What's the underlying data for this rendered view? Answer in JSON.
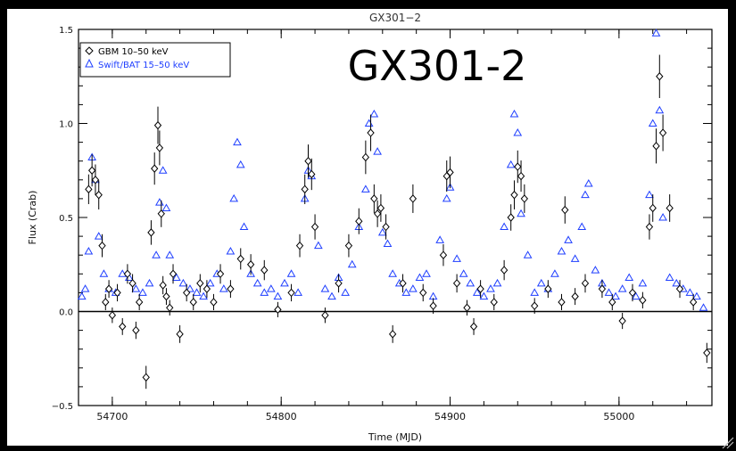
{
  "chart_data": {
    "type": "scatter",
    "title": "GX301−2",
    "overlay_title": "GX301-2",
    "xlabel": "Time (MJD)",
    "ylabel": "Flux (Crab)",
    "xlim": [
      54680,
      55055
    ],
    "ylim": [
      -0.5,
      1.5
    ],
    "x_ticks": [
      "54700",
      "54800",
      "54900",
      "55000"
    ],
    "y_ticks": [
      "−0.5",
      "0.0",
      "0.5",
      "1.0",
      "1.5"
    ],
    "zero_line": true,
    "grid": false,
    "legend_position": "top-left",
    "series": [
      {
        "name": "GBM 10–50 keV",
        "marker": "diamond",
        "color": "#000000",
        "error_bars": true,
        "x": [
          54686,
          54688,
          54690,
          54692,
          54694,
          54696,
          54698,
          54700,
          54703,
          54706,
          54709,
          54712,
          54714,
          54716,
          54720,
          54723,
          54725,
          54727,
          54728,
          54729,
          54730,
          54732,
          54734,
          54736,
          54740,
          54744,
          54748,
          54752,
          54756,
          54760,
          54764,
          54770,
          54776,
          54782,
          54790,
          54798,
          54806,
          54811,
          54814,
          54816,
          54818,
          54820,
          54826,
          54834,
          54840,
          54846,
          54850,
          54853,
          54855,
          54857,
          54859,
          54862,
          54866,
          54872,
          54878,
          54884,
          54890,
          54896,
          54898,
          54900,
          54904,
          54910,
          54914,
          54918,
          54926,
          54932,
          54936,
          54938,
          54940,
          54942,
          54944,
          54950,
          54958,
          54966,
          54968,
          54974,
          54980,
          54990,
          54996,
          55002,
          55008,
          55014,
          55018,
          55020,
          55022,
          55024,
          55026,
          55030,
          55036,
          55044,
          55052
        ],
        "y": [
          0.65,
          0.75,
          0.7,
          0.62,
          0.35,
          0.05,
          0.12,
          -0.02,
          0.1,
          -0.08,
          0.2,
          0.15,
          -0.1,
          0.05,
          -0.35,
          0.42,
          0.76,
          0.99,
          0.87,
          0.52,
          0.14,
          0.08,
          0.02,
          0.2,
          -0.12,
          0.1,
          0.05,
          0.15,
          0.12,
          0.05,
          0.2,
          0.12,
          0.28,
          0.25,
          0.22,
          0.01,
          0.1,
          0.35,
          0.65,
          0.8,
          0.73,
          0.45,
          -0.02,
          0.15,
          0.35,
          0.48,
          0.82,
          0.95,
          0.6,
          0.52,
          0.55,
          0.45,
          -0.12,
          0.15,
          0.6,
          0.1,
          0.03,
          0.3,
          0.72,
          0.74,
          0.15,
          0.02,
          -0.08,
          0.12,
          0.05,
          0.22,
          0.5,
          0.62,
          0.77,
          0.72,
          0.6,
          0.03,
          0.12,
          0.05,
          0.54,
          0.08,
          0.15,
          0.12,
          0.05,
          -0.05,
          0.1,
          0.06,
          0.45,
          0.55,
          0.88,
          1.25,
          0.95,
          0.55,
          0.12,
          0.05,
          -0.22
        ]
      },
      {
        "name": "Swift/BAT 15–50 keV",
        "marker": "triangle",
        "color": "#1f3fff",
        "error_bars": false,
        "x": [
          54682,
          54684,
          54686,
          54688,
          54690,
          54692,
          54695,
          54698,
          54702,
          54706,
          54710,
          54714,
          54718,
          54722,
          54726,
          54728,
          54730,
          54732,
          54734,
          54738,
          54742,
          54746,
          54750,
          54754,
          54758,
          54762,
          54766,
          54770,
          54772,
          54774,
          54776,
          54778,
          54782,
          54786,
          54790,
          54794,
          54798,
          54802,
          54806,
          54810,
          54814,
          54816,
          54818,
          54822,
          54826,
          54830,
          54834,
          54838,
          54842,
          54846,
          54850,
          54852,
          54855,
          54857,
          54860,
          54863,
          54866,
          54870,
          54874,
          54878,
          54882,
          54886,
          54890,
          54894,
          54898,
          54900,
          54904,
          54908,
          54912,
          54916,
          54920,
          54924,
          54928,
          54932,
          54936,
          54938,
          54940,
          54942,
          54946,
          54950,
          54954,
          54958,
          54962,
          54966,
          54970,
          54974,
          54978,
          54980,
          54982,
          54986,
          54990,
          54994,
          54998,
          55002,
          55006,
          55010,
          55014,
          55018,
          55020,
          55022,
          55024,
          55026,
          55030,
          55034,
          55038,
          55042,
          55046,
          55050
        ],
        "y": [
          0.08,
          0.12,
          0.32,
          0.82,
          0.7,
          0.4,
          0.2,
          0.12,
          0.1,
          0.2,
          0.18,
          0.12,
          0.1,
          0.15,
          0.3,
          0.58,
          0.75,
          0.55,
          0.3,
          0.18,
          0.15,
          0.12,
          0.1,
          0.08,
          0.15,
          0.2,
          0.12,
          0.32,
          0.6,
          0.9,
          0.78,
          0.45,
          0.2,
          0.15,
          0.1,
          0.12,
          0.08,
          0.15,
          0.2,
          0.1,
          0.6,
          0.75,
          0.72,
          0.35,
          0.12,
          0.08,
          0.18,
          0.1,
          0.25,
          0.45,
          0.65,
          1.0,
          1.05,
          0.85,
          0.42,
          0.36,
          0.2,
          0.15,
          0.1,
          0.12,
          0.18,
          0.2,
          0.08,
          0.38,
          0.6,
          0.66,
          0.28,
          0.2,
          0.15,
          0.1,
          0.08,
          0.12,
          0.15,
          0.45,
          0.78,
          1.05,
          0.95,
          0.52,
          0.3,
          0.1,
          0.15,
          0.12,
          0.2,
          0.32,
          0.38,
          0.28,
          0.45,
          0.62,
          0.68,
          0.22,
          0.15,
          0.1,
          0.08,
          0.12,
          0.18,
          0.08,
          0.15,
          0.62,
          1.0,
          1.48,
          1.07,
          0.5,
          0.18,
          0.15,
          0.12,
          0.1,
          0.08,
          0.02
        ]
      }
    ]
  }
}
